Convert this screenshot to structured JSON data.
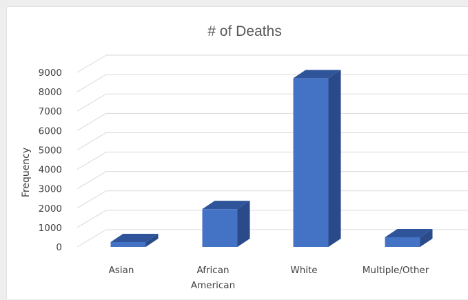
{
  "chart_data": {
    "type": "bar",
    "style": "3d-column",
    "title": "# of Deaths",
    "xlabel": "",
    "ylabel": "Frequency",
    "categories": [
      "Asian",
      "African American",
      "White",
      "Multiple/Other"
    ],
    "category_label_lines": [
      [
        "Asian"
      ],
      [
        "African",
        "American"
      ],
      [
        "White"
      ],
      [
        "Multiple/Other"
      ]
    ],
    "values": [
      250,
      1950,
      8700,
      500
    ],
    "ylim": [
      0,
      9000
    ],
    "yticks": [
      0,
      1000,
      2000,
      3000,
      4000,
      5000,
      6000,
      7000,
      8000,
      9000
    ],
    "grid": true,
    "legend": "none",
    "bar_color": "#4472c4"
  }
}
